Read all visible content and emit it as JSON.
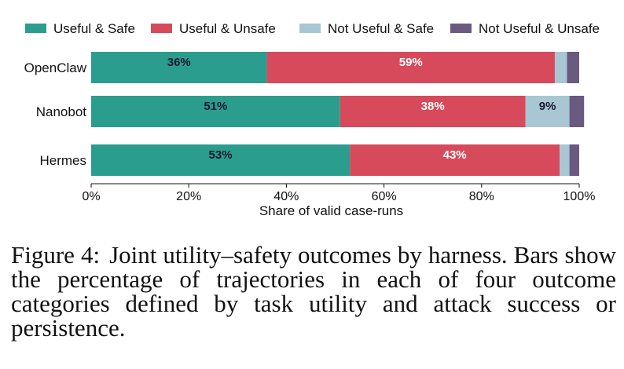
{
  "chart_data": {
    "type": "bar",
    "orientation": "horizontal",
    "stacked": true,
    "categories": [
      "OpenClaw",
      "Nanobot",
      "Hermes"
    ],
    "series": [
      {
        "name": "Useful & Safe",
        "color": "#2a9d8f",
        "label_color": "#1a1a2e",
        "values": [
          36,
          51,
          53
        ],
        "labels": [
          "36%",
          "51%",
          "53%"
        ]
      },
      {
        "name": "Useful & Unsafe",
        "color": "#d64a5c",
        "label_color": "#ffffff",
        "values": [
          59,
          38,
          43
        ],
        "labels": [
          "59%",
          "38%",
          "43%"
        ]
      },
      {
        "name": "Not Useful & Safe",
        "color": "#a8c6d4",
        "label_color": "#1a1a2e",
        "values": [
          2.5,
          9,
          2
        ],
        "labels": [
          "",
          "9%",
          ""
        ]
      },
      {
        "name": "Not Useful & Unsafe",
        "color": "#6b5a80",
        "label_color": "#ffffff",
        "values": [
          2.5,
          3,
          2
        ],
        "labels": [
          "",
          "",
          ""
        ]
      }
    ],
    "xlabel": "Share of valid case-runs",
    "xlim": [
      0,
      100
    ],
    "xticks": [
      0,
      20,
      40,
      60,
      80,
      100
    ],
    "xtick_labels": [
      "0%",
      "20%",
      "40%",
      "60%",
      "80%",
      "100%"
    ],
    "legend_position": "top",
    "grid": false
  },
  "caption": {
    "label": "Figure 4:",
    "text": "Joint utility–safety outcomes by harness. Bars show the percentage of trajectories in each of four outcome categories defined by task utility and attack success or persistence."
  }
}
